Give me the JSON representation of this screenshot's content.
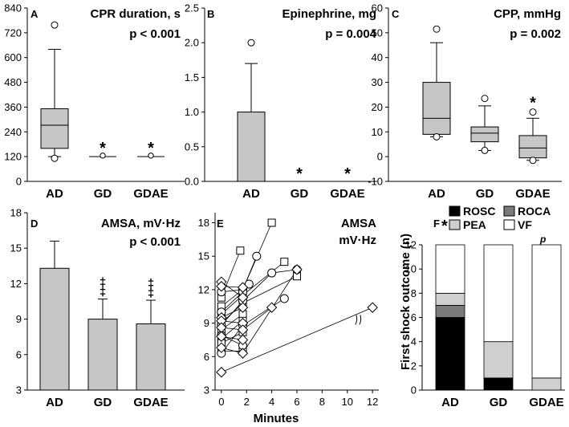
{
  "chart_data": [
    {
      "id": "A",
      "type": "box",
      "letter": "A",
      "title": "CPR duration, s",
      "p_value": "p < 0.001",
      "ylim": [
        0,
        840
      ],
      "yticks": [
        0,
        120,
        240,
        360,
        480,
        600,
        720,
        840
      ],
      "categories": [
        "AD",
        "GD",
        "GDAE"
      ],
      "boxes": [
        {
          "q1": 160,
          "median": 272,
          "q3": 352,
          "whisker_low": 120,
          "whisker_high": 640,
          "outliers": [
            112,
            758
          ],
          "extremes": []
        },
        {
          "flat": 120,
          "outliers": [],
          "extremes": [
            125
          ]
        },
        {
          "flat": 120,
          "outliers": [],
          "extremes": [
            125
          ]
        }
      ],
      "annotations": [
        "*",
        "*"
      ]
    },
    {
      "id": "B",
      "type": "box",
      "letter": "B",
      "title": "Epinephrine, mg",
      "p_value": "p = 0.004",
      "ylim": [
        0,
        2.5
      ],
      "yticks": [
        0,
        0.5,
        1,
        1.5,
        2,
        2.5
      ],
      "yticklabels": [
        "0.0",
        "0.5",
        "1.0",
        "1.5",
        "2.0",
        "2.5"
      ],
      "categories": [
        "AD",
        "GD",
        "GDAE"
      ],
      "boxes": [
        {
          "q1": 0,
          "median": 0,
          "q3": 1.0,
          "whisker_low": 0,
          "whisker_high": 1.7,
          "outliers": [
            2.0
          ],
          "extremes": []
        },
        {
          "flat": 0,
          "outliers": [],
          "extremes": []
        },
        {
          "flat": 0,
          "outliers": [],
          "extremes": []
        }
      ],
      "annotations": [
        "*",
        "*"
      ]
    },
    {
      "id": "C",
      "type": "box",
      "letter": "C",
      "title": "CPP, mmHg",
      "p_value": "p = 0.002",
      "ylim": [
        -10,
        60
      ],
      "yticks": [
        -10,
        0,
        10,
        20,
        30,
        40,
        50,
        60
      ],
      "categories": [
        "AD",
        "GD",
        "GDAE"
      ],
      "boxes": [
        {
          "q1": 9,
          "median": 15.5,
          "q3": 30,
          "whisker_low": 8,
          "whisker_high": 46,
          "outliers": [
            8,
            51.5
          ],
          "extremes": []
        },
        {
          "q1": 6,
          "median": 9.5,
          "q3": 12,
          "whisker_low": 2.5,
          "whisker_high": 20.5,
          "outliers": [
            2.5,
            23.5
          ],
          "extremes": []
        },
        {
          "q1": -0.5,
          "median": 3.5,
          "q3": 8.5,
          "whisker_low": -1.5,
          "whisker_high": 15.5,
          "outliers": [
            -1.5,
            18
          ],
          "extremes": []
        }
      ],
      "annotations": [
        "*"
      ]
    },
    {
      "id": "D",
      "type": "bar",
      "letter": "D",
      "title": "AMSA, mV·Hz",
      "p_value": "p < 0.001",
      "ylim": [
        3,
        18
      ],
      "yticks": [
        3,
        6,
        9,
        12,
        15,
        18
      ],
      "categories": [
        "AD",
        "GD",
        "GDAE"
      ],
      "values": [
        13.3,
        9.0,
        8.6
      ],
      "errors": [
        2.3,
        1.7,
        2.0
      ],
      "annotations": [
        "‡",
        "‡"
      ]
    },
    {
      "id": "E",
      "type": "line",
      "letter": "E",
      "title_line1": "AMSA",
      "title_line2": "mV·Hz",
      "xlabel": "Minutes",
      "xlim": [
        -0.5,
        12.5
      ],
      "xticks": [
        0,
        2,
        4,
        6,
        8,
        10,
        12
      ],
      "ylim": [
        3,
        18.9
      ],
      "yticks": [
        3,
        6,
        9,
        12,
        15,
        18
      ],
      "series": [
        {
          "marker": "square",
          "points": [
            [
              0,
              11.3
            ],
            [
              1.5,
              15.5
            ]
          ]
        },
        {
          "marker": "square",
          "points": [
            [
              0,
              10.5
            ],
            [
              1.7,
              12.0
            ],
            [
              4,
              18.0
            ]
          ]
        },
        {
          "marker": "square",
          "points": [
            [
              0,
              9.8
            ],
            [
              1.7,
              11.5
            ],
            [
              5,
              14.5
            ]
          ]
        },
        {
          "marker": "square",
          "points": [
            [
              0,
              9.0
            ],
            [
              1.7,
              10.8
            ],
            [
              6,
              13.2
            ]
          ]
        },
        {
          "marker": "square",
          "points": [
            [
              0,
              8.4
            ],
            [
              1.7,
              9.8
            ]
          ]
        },
        {
          "marker": "square",
          "points": [
            [
              0,
              7.6
            ],
            [
              1.7,
              9.2
            ]
          ]
        },
        {
          "marker": "square",
          "points": [
            [
              0,
              7.2
            ],
            [
              1.7,
              8.2
            ]
          ]
        },
        {
          "marker": "square",
          "points": [
            [
              0,
              6.5
            ],
            [
              1.7,
              6.5
            ]
          ]
        },
        {
          "marker": "circle",
          "points": [
            [
              0,
              11.8
            ],
            [
              1.7,
              12.0
            ],
            [
              2.8,
              15.0
            ]
          ]
        },
        {
          "marker": "circle",
          "points": [
            [
              0,
              8.8
            ],
            [
              1.7,
              11.0
            ],
            [
              4,
              13.5
            ],
            [
              6,
              13.8
            ]
          ]
        },
        {
          "marker": "circle",
          "points": [
            [
              0,
              6.3
            ],
            [
              1.7,
              8.8
            ],
            [
              5,
              11.2
            ]
          ]
        },
        {
          "marker": "circle",
          "points": [
            [
              0,
              10.0
            ],
            [
              1.7,
              11.8
            ],
            [
              2.2,
              12.5
            ]
          ]
        },
        {
          "marker": "circle",
          "points": [
            [
              0,
              7.9
            ],
            [
              1.7,
              7.0
            ]
          ]
        },
        {
          "marker": "diamond",
          "points": [
            [
              0,
              12.7
            ],
            [
              1.7,
              11.3
            ]
          ]
        },
        {
          "marker": "diamond",
          "points": [
            [
              0,
              12.3
            ],
            [
              1.7,
              12.2
            ]
          ]
        },
        {
          "marker": "diamond",
          "points": [
            [
              0,
              9.5
            ],
            [
              1.7,
              10.4
            ]
          ]
        },
        {
          "marker": "diamond",
          "points": [
            [
              0,
              9.2
            ],
            [
              1.7,
              9.0
            ]
          ]
        },
        {
          "marker": "diamond",
          "points": [
            [
              0,
              8.6
            ],
            [
              1.7,
              8.4
            ],
            [
              4,
              10.4
            ]
          ]
        },
        {
          "marker": "diamond",
          "points": [
            [
              0,
              7.8
            ],
            [
              1.7,
              7.5
            ]
          ]
        },
        {
          "marker": "diamond",
          "points": [
            [
              0,
              6.8
            ],
            [
              1.7,
              6.3
            ],
            [
              6,
              13.8
            ]
          ]
        },
        {
          "marker": "diamond",
          "points": [
            [
              0,
              4.6
            ],
            [
              12,
              10.4
            ]
          ]
        }
      ]
    },
    {
      "id": "F",
      "type": "stacked_bar",
      "letter": "F",
      "ylabel": "First shock outcome (n)",
      "ylim": [
        0,
        12
      ],
      "yticks": [
        0,
        2,
        4,
        6,
        8,
        10,
        12
      ],
      "categories": [
        "AD",
        "GD",
        "GDAE"
      ],
      "legend": [
        {
          "name": "ROSC",
          "color": "#000000"
        },
        {
          "name": "ROCA",
          "color": "#7a7a7a"
        },
        {
          "name": "PEA",
          "color": "#cfcfcf"
        },
        {
          "name": "VF",
          "color": "#ffffff"
        }
      ],
      "series": [
        {
          "name": "ROSC",
          "values": [
            6,
            1,
            0
          ]
        },
        {
          "name": "ROCA",
          "values": [
            1,
            0,
            0
          ]
        },
        {
          "name": "PEA",
          "values": [
            1,
            3,
            1
          ]
        },
        {
          "name": "VF",
          "values": [
            4,
            8,
            11
          ]
        }
      ],
      "annotation_star": "*",
      "annotation_p": "p"
    }
  ]
}
